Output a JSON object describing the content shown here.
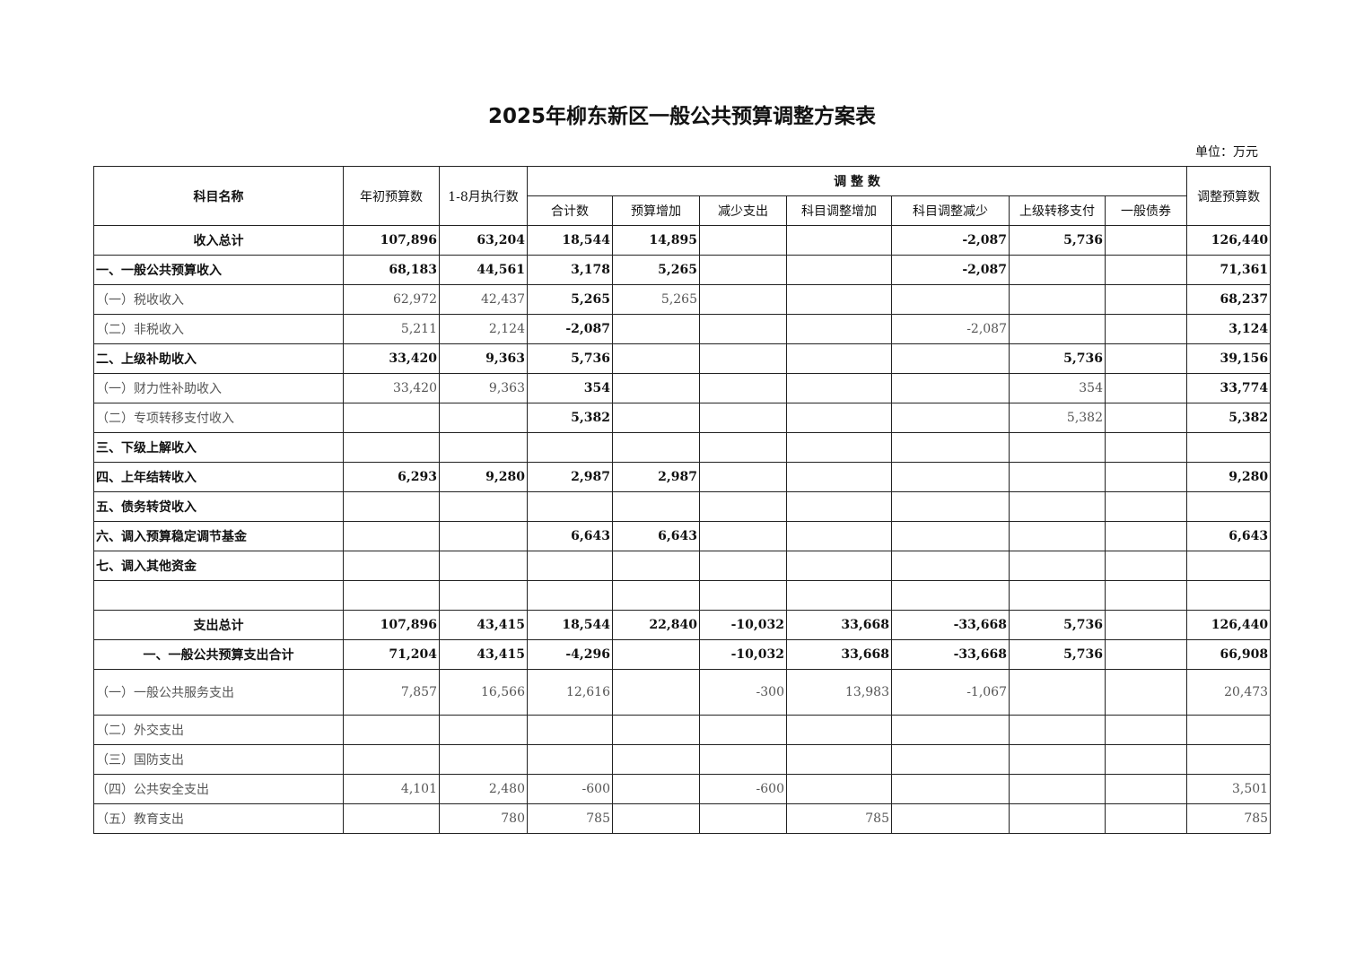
{
  "title": "2025年柳东新区一般公共预算调整方案表",
  "unit": "单位：万元",
  "headers": {
    "name": "科目名称",
    "initial": "年初预算数",
    "executed": "1-8月执行数",
    "adjust_group": "调 整 数",
    "adjust_cols": [
      "合计数",
      "预算增加",
      "减少支出",
      "科目调整增加",
      "科目调整减少",
      "上级转移支付",
      "一般债券"
    ],
    "adjusted": "调整预算数"
  },
  "rows": [
    {
      "name": "收入总计",
      "values": [
        "107,896",
        "63,204",
        "18,544",
        "14,895",
        "",
        "",
        "-2,087",
        "5,736",
        "",
        "126,440"
      ]
    },
    {
      "name": "一、一般公共预算收入",
      "values": [
        "68,183",
        "44,561",
        "3,178",
        "5,265",
        "",
        "",
        "-2,087",
        "",
        "",
        "71,361"
      ]
    },
    {
      "name": "（一）税收收入",
      "values": [
        "62,972",
        "42,437",
        "5,265",
        "5,265",
        "",
        "",
        "",
        "",
        "",
        "68,237"
      ]
    },
    {
      "name": "（二）非税收入",
      "values": [
        "5,211",
        "2,124",
        "-2,087",
        "",
        "",
        "",
        "-2,087",
        "",
        "",
        "3,124"
      ]
    },
    {
      "name": "二、上级补助收入",
      "values": [
        "33,420",
        "9,363",
        "5,736",
        "",
        "",
        "",
        "",
        "5,736",
        "",
        "39,156"
      ]
    },
    {
      "name": "（一）财力性补助收入",
      "values": [
        "33,420",
        "9,363",
        "354",
        "",
        "",
        "",
        "",
        "354",
        "",
        "33,774"
      ]
    },
    {
      "name": "（二）专项转移支付收入",
      "values": [
        "",
        "",
        "5,382",
        "",
        "",
        "",
        "",
        "5,382",
        "",
        "5,382"
      ]
    },
    {
      "name": "三、下级上解收入",
      "values": [
        "",
        "",
        "",
        "",
        "",
        "",
        "",
        "",
        "",
        ""
      ]
    },
    {
      "name": "四、上年结转收入",
      "values": [
        "6,293",
        "9,280",
        "2,987",
        "2,987",
        "",
        "",
        "",
        "",
        "",
        "9,280"
      ]
    },
    {
      "name": "五、债务转贷收入",
      "values": [
        "",
        "",
        "",
        "",
        "",
        "",
        "",
        "",
        "",
        ""
      ]
    },
    {
      "name": "六、调入预算稳定调节基金",
      "values": [
        "",
        "",
        "6,643",
        "6,643",
        "",
        "",
        "",
        "",
        "",
        "6,643"
      ]
    },
    {
      "name": "七、调入其他资金",
      "values": [
        "",
        "",
        "",
        "",
        "",
        "",
        "",
        "",
        "",
        ""
      ]
    },
    {
      "name": "",
      "values": [
        "",
        "",
        "",
        "",
        "",
        "",
        "",
        "",
        "",
        ""
      ]
    },
    {
      "name": "支出总计",
      "values": [
        "107,896",
        "43,415",
        "18,544",
        "22,840",
        "-10,032",
        "33,668",
        "-33,668",
        "5,736",
        "",
        "126,440"
      ]
    },
    {
      "name": "一、一般公共预算支出合计",
      "values": [
        "71,204",
        "43,415",
        "-4,296",
        "",
        "-10,032",
        "33,668",
        "-33,668",
        "5,736",
        "",
        "66,908"
      ]
    },
    {
      "name": "（一）一般公共服务支出",
      "values": [
        "7,857",
        "16,566",
        "12,616",
        "",
        "-300",
        "13,983",
        "-1,067",
        "",
        "",
        "20,473"
      ]
    },
    {
      "name": "（二）外交支出",
      "values": [
        "",
        "",
        "",
        "",
        "",
        "",
        "",
        "",
        "",
        ""
      ]
    },
    {
      "name": "（三）国防支出",
      "values": [
        "",
        "",
        "",
        "",
        "",
        "",
        "",
        "",
        "",
        ""
      ]
    },
    {
      "name": "（四）公共安全支出",
      "values": [
        "4,101",
        "2,480",
        "-600",
        "",
        "-600",
        "",
        "",
        "",
        "",
        "3,501"
      ]
    },
    {
      "name": "（五）教育支出",
      "values": [
        "",
        "780",
        "785",
        "",
        "",
        "785",
        "",
        "",
        "",
        "785"
      ]
    }
  ]
}
